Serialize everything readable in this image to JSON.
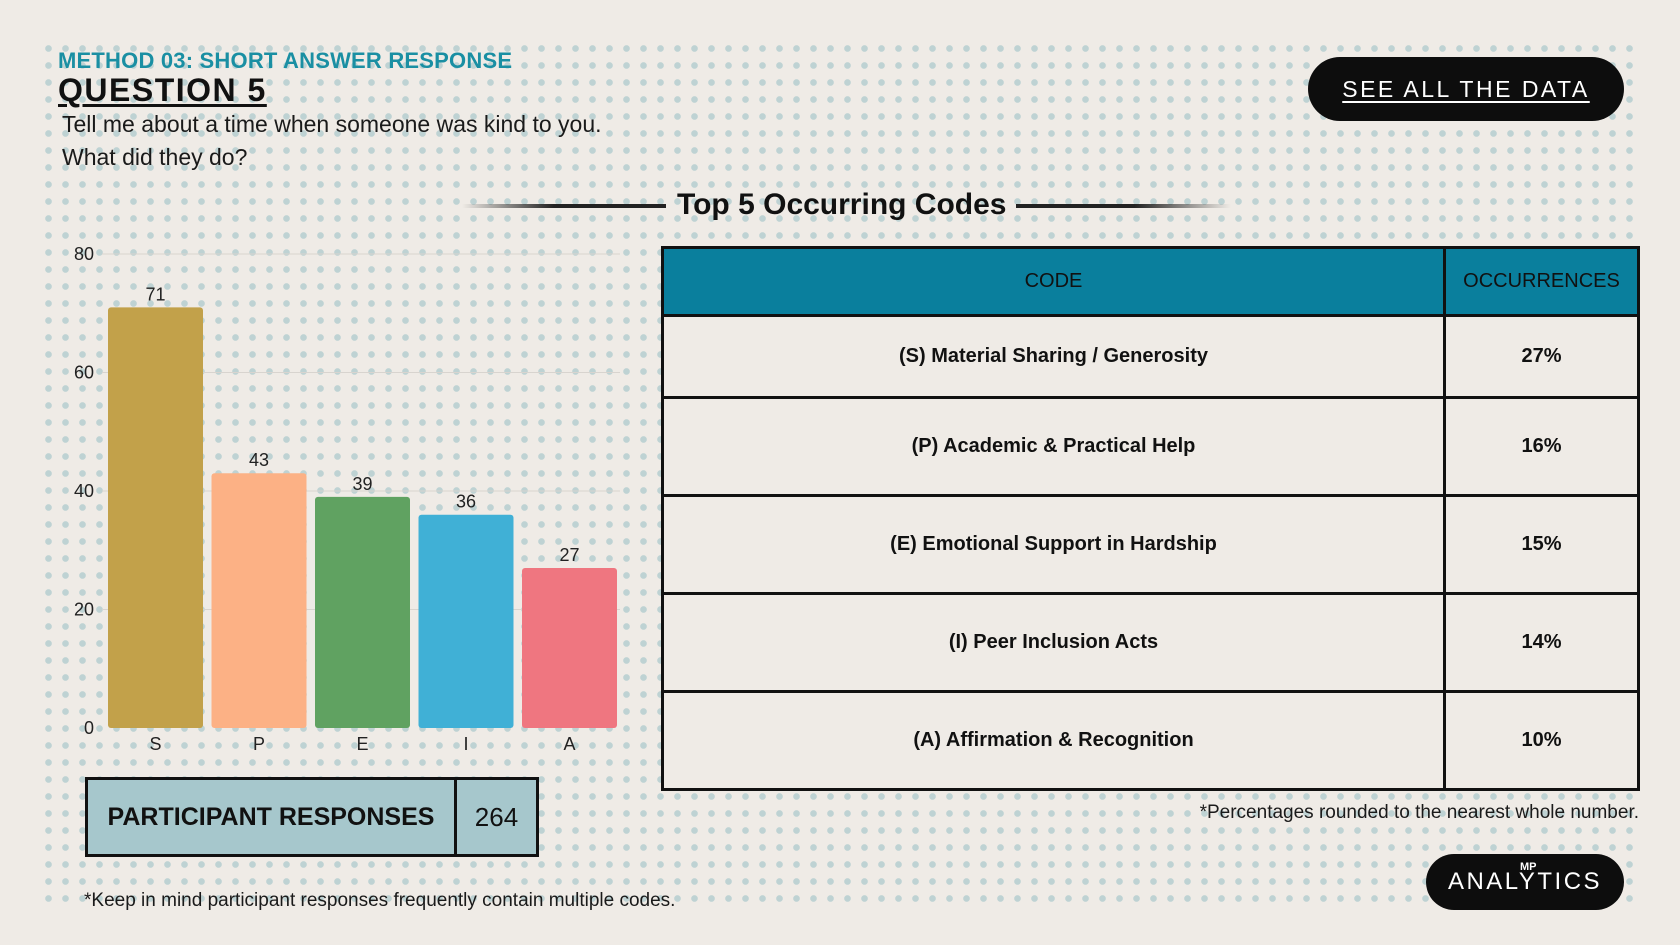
{
  "header": {
    "method": "METHOD 03: SHORT ANSWER RESPONSE",
    "question": "QUESTION 5",
    "prompt": "Tell me about a time when someone was kind to you. What did they do?"
  },
  "buttons": {
    "see_all": "SEE ALL THE DATA"
  },
  "section_title": "Top 5 Occurring Codes",
  "chart_data": {
    "type": "bar",
    "categories": [
      "S",
      "P",
      "E",
      "I",
      "A"
    ],
    "values": [
      71,
      43,
      39,
      36,
      27
    ],
    "colors": [
      "#c2a14a",
      "#fcb185",
      "#60a261",
      "#40b0d6",
      "#ef7680"
    ],
    "ylim": [
      0,
      80
    ],
    "yticks": [
      0,
      20,
      40,
      60,
      80
    ],
    "title": "",
    "xlabel": "",
    "ylabel": ""
  },
  "participant_responses": {
    "label": "PARTICIPANT RESPONSES",
    "value": "264"
  },
  "table": {
    "headers": [
      "CODE",
      "OCCURRENCES"
    ],
    "rows": [
      {
        "code": "(S) Material Sharing / Generosity",
        "pct": "27%"
      },
      {
        "code": "(P) Academic & Practical Help",
        "pct": "16%"
      },
      {
        "code": "(E) Emotional Support in Hardship",
        "pct": "15%"
      },
      {
        "code": "(I) Peer Inclusion Acts",
        "pct": "14%"
      },
      {
        "code": "(A) Affirmation & Recognition",
        "pct": "10%"
      }
    ]
  },
  "notes": {
    "rounding": "*Percentages rounded to the nearest whole number.",
    "multiple_codes": "*Keep in mind participant responses frequently contain multiple codes."
  },
  "logo": {
    "text": "ANALYTICS",
    "mark": "MP"
  }
}
